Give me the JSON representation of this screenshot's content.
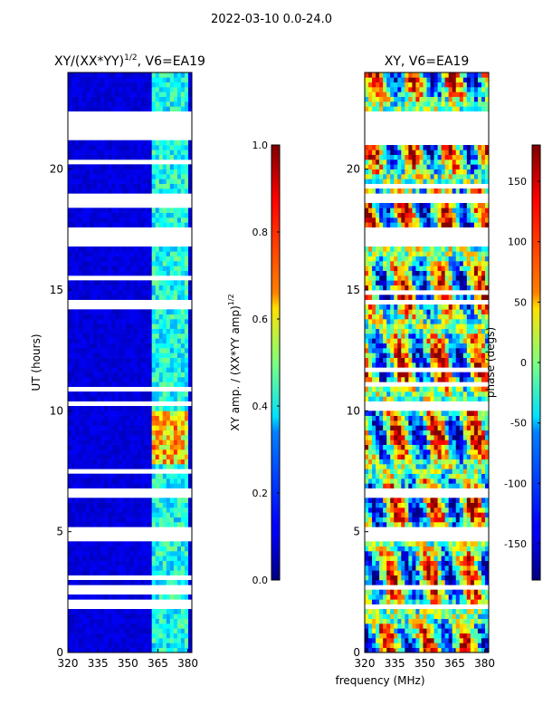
{
  "suptitle": "2022-03-10 0.0-24.0",
  "shared_xlabel": "frequency (MHz)",
  "chart_data": [
    {
      "type": "heatmap",
      "title": "XY/(XX*YY)^1/2, V6=EA19",
      "title_main": "XY/(XX*YY)",
      "title_sup": "1/2",
      "title_tail": ", V6=EA19",
      "xlabel": "frequency (MHz)",
      "ylabel": "UT (hours)",
      "xlim": [
        320,
        382
      ],
      "ylim": [
        0,
        24
      ],
      "xticks": [
        "320",
        "335",
        "350",
        "365",
        "380"
      ],
      "xtick_values": [
        320,
        335,
        350,
        365,
        380
      ],
      "yticks": [
        "0",
        "5",
        "10",
        "15",
        "20"
      ],
      "ytick_values": [
        0,
        5,
        10,
        15,
        20
      ],
      "colorbar": {
        "label_main": "XY amp. / (XX*YY amp)",
        "label_sup": "1/2",
        "range": [
          0.0,
          1.0
        ],
        "ticks": [
          "0.0",
          "0.2",
          "0.4",
          "0.6",
          "0.8",
          "1.0"
        ],
        "tick_values": [
          0.0,
          0.2,
          0.4,
          0.6,
          0.8,
          1.0
        ]
      },
      "gaps_hours": [
        [
          16.8,
          17.6
        ],
        [
          18.6,
          18.9
        ],
        [
          21.2,
          22.3
        ],
        [
          6.4,
          6.7
        ],
        [
          4.7,
          5.1
        ],
        [
          10.2,
          10.4
        ],
        [
          14.5,
          14.6
        ],
        [
          1.8,
          2.0
        ]
      ],
      "bright_band_mhz": [
        362,
        380
      ],
      "colormap": "jet"
    },
    {
      "type": "heatmap",
      "title": "XY, V6=EA19",
      "xlabel": "frequency (MHz)",
      "ylabel": "",
      "xlim": [
        320,
        382
      ],
      "ylim": [
        0,
        24
      ],
      "xticks": [
        "320",
        "335",
        "350",
        "365",
        "380"
      ],
      "xtick_values": [
        320,
        335,
        350,
        365,
        380
      ],
      "yticks": [
        "0",
        "5",
        "10",
        "15",
        "20"
      ],
      "ytick_values": [
        0,
        5,
        10,
        15,
        20
      ],
      "colorbar": {
        "label": "phase (degs)",
        "range": [
          -180,
          180
        ],
        "ticks": [
          "-150",
          "-100",
          "-50",
          "0",
          "50",
          "100",
          "150"
        ],
        "tick_values": [
          -150,
          -100,
          -50,
          0,
          50,
          100,
          150
        ]
      },
      "gaps_hours": [
        [
          16.8,
          17.6
        ],
        [
          18.6,
          18.9
        ],
        [
          21.2,
          22.3
        ],
        [
          6.4,
          6.7
        ],
        [
          4.7,
          5.1
        ],
        [
          10.2,
          10.4
        ],
        [
          14.5,
          14.6
        ],
        [
          1.8,
          2.0
        ]
      ],
      "colormap": "jet"
    }
  ]
}
